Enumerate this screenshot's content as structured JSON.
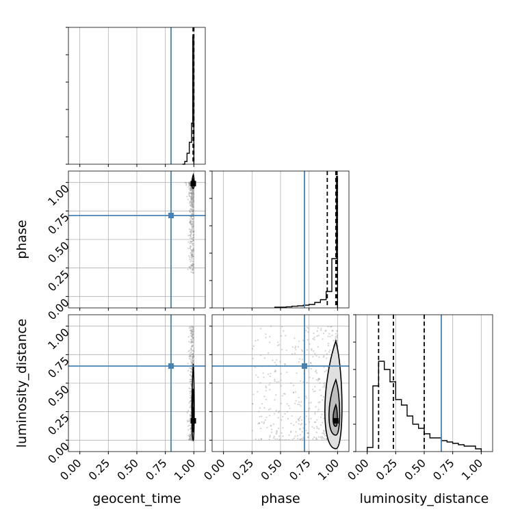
{
  "colors": {
    "truth": "#4682b4",
    "grid": "#b0b0b0",
    "samples": "#9a9a9a",
    "hist": "#000000",
    "background": "#ffffff"
  },
  "chart_data": {
    "type": "corner",
    "parameters": [
      "geocent_time",
      "phase",
      "luminosity_distance"
    ],
    "ticks": [
      "0.00",
      "0.25",
      "0.50",
      "0.75",
      "1.00"
    ],
    "tick_values": [
      0,
      0.25,
      0.5,
      0.75,
      1.0
    ],
    "axis_range": [
      -0.1,
      1.1
    ],
    "grid": true,
    "truth_values": {
      "geocent_time": 0.8,
      "phase": 0.71,
      "luminosity_distance": 0.65
    },
    "quantiles": {
      "geocent_time": [
        0.993,
        0.998,
        1.0
      ],
      "phase": [
        0.91,
        0.985,
        0.995
      ],
      "luminosity_distance": [
        0.1,
        0.23,
        0.5
      ]
    },
    "marginals": {
      "geocent_time": {
        "bins": [
          0.9,
          0.92,
          0.94,
          0.96,
          0.98,
          0.99,
          1.0
        ],
        "heights": [
          0.0,
          0.02,
          0.08,
          0.16,
          0.3,
          0.93
        ]
      },
      "phase": {
        "bins": [
          0.45,
          0.5,
          0.55,
          0.6,
          0.65,
          0.7,
          0.75,
          0.8,
          0.85,
          0.9,
          0.95,
          0.99,
          1.0
        ],
        "heights": [
          0.005,
          0.005,
          0.008,
          0.012,
          0.015,
          0.02,
          0.025,
          0.04,
          0.06,
          0.12,
          0.36,
          0.96
        ]
      },
      "luminosity_distance": {
        "bins": [
          0.0,
          0.05,
          0.1,
          0.15,
          0.2,
          0.25,
          0.3,
          0.35,
          0.4,
          0.45,
          0.5,
          0.55,
          0.6,
          0.65,
          0.7,
          0.75,
          0.8,
          0.85,
          0.9,
          0.95,
          1.0
        ],
        "heights": [
          0.03,
          0.48,
          0.66,
          0.6,
          0.51,
          0.38,
          0.34,
          0.26,
          0.2,
          0.17,
          0.13,
          0.1,
          0.1,
          0.08,
          0.07,
          0.06,
          0.05,
          0.04,
          0.04,
          0.02
        ]
      }
    }
  }
}
